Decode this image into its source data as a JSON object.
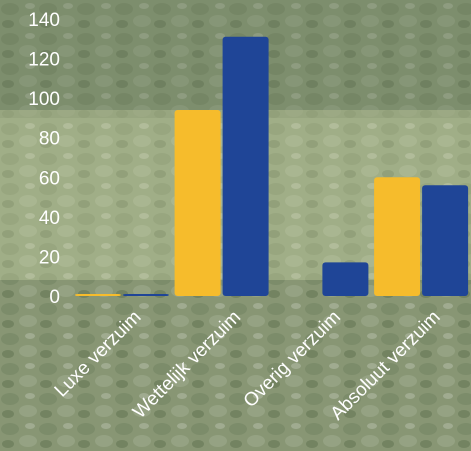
{
  "chart_data": {
    "type": "bar",
    "title": "",
    "xlabel": "",
    "ylabel": "",
    "categories": [
      "Luxe verzuim",
      "Wettelijk verzuim",
      "Overig verzuim",
      "Absoluut verzuim"
    ],
    "series": [
      {
        "color": "#f6bc2c",
        "values": [
          1,
          94,
          0,
          60
        ]
      },
      {
        "color": "#1f4597",
        "values": [
          1,
          131,
          17,
          56
        ]
      }
    ],
    "yticks": [
      0,
      20,
      40,
      60,
      80,
      100,
      120,
      140
    ],
    "ylim": [
      0,
      140
    ],
    "grid": false,
    "legend": "none"
  }
}
